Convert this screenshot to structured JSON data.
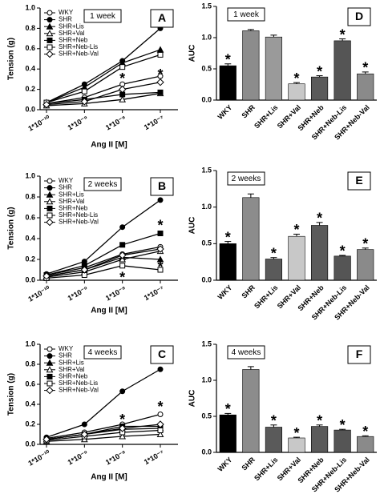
{
  "chart_data": [
    {
      "type": "line",
      "label": "A",
      "subtitle": "1 week",
      "y_label": "Tension (g)",
      "x_label": "Ang II [M]",
      "categories": [
        "1*10⁻¹⁰",
        "1*10⁻⁹",
        "1*10⁻⁸",
        "1*10⁻⁷"
      ],
      "ylim": [
        0,
        1.0
      ],
      "yticks": [
        {
          "value": 0,
          "label": "0.0"
        },
        0.2,
        0.4,
        0.6,
        0.8,
        {
          "value": 1,
          "label": "1.0"
        }
      ],
      "series": [
        {
          "name": "WKY",
          "color": "#000000",
          "marker": "circle-open",
          "values": [
            0.06,
            0.12,
            0.25,
            0.33
          ]
        },
        {
          "name": "SHR",
          "color": "#000000",
          "marker": "circle-filled",
          "values": [
            0.07,
            0.25,
            0.48,
            0.8
          ]
        },
        {
          "name": "SHR+Lis",
          "color": "#000000",
          "marker": "triangle-filled",
          "values": [
            0.07,
            0.22,
            0.46,
            0.59
          ]
        },
        {
          "name": "SHR+Val",
          "color": "#000000",
          "marker": "triangle-open",
          "values": [
            0.04,
            0.06,
            0.1,
            0.16
          ]
        },
        {
          "name": "SHR+Neb",
          "color": "#000000",
          "marker": "square-filled",
          "values": [
            0.06,
            0.1,
            0.15,
            0.17
          ]
        },
        {
          "name": "SHR+Neb-Lis",
          "color": "#000000",
          "marker": "square-open",
          "values": [
            0.07,
            0.18,
            0.42,
            0.54
          ]
        },
        {
          "name": "SHR+Neb-Val",
          "color": "#000000",
          "marker": "diamond-open",
          "values": [
            0.05,
            0.08,
            0.2,
            0.27
          ]
        }
      ],
      "annotations": [
        {
          "text": "*",
          "x": 2,
          "y": 0.33
        },
        {
          "text": "*",
          "x": 3,
          "y": 0.37
        }
      ]
    },
    {
      "type": "line",
      "label": "B",
      "subtitle": "2 weeks",
      "y_label": "Tension (g)",
      "x_label": "Ang II [M]",
      "categories": [
        "1*10⁻¹⁰",
        "1*10⁻⁹",
        "1*10⁻⁸",
        "1*10⁻⁷"
      ],
      "ylim": [
        0,
        1.0
      ],
      "yticks": [
        {
          "value": 0,
          "label": "0.0"
        },
        0.2,
        0.4,
        0.6,
        0.8,
        {
          "value": 1,
          "label": "1.0"
        }
      ],
      "series": [
        {
          "name": "WKY",
          "color": "#000000",
          "marker": "circle-open",
          "values": [
            0.05,
            0.12,
            0.25,
            0.32
          ]
        },
        {
          "name": "SHR",
          "color": "#000000",
          "marker": "circle-filled",
          "values": [
            0.06,
            0.18,
            0.51,
            0.77
          ]
        },
        {
          "name": "SHR+Lis",
          "color": "#000000",
          "marker": "triangle-filled",
          "values": [
            0.04,
            0.1,
            0.22,
            0.2
          ]
        },
        {
          "name": "SHR+Val",
          "color": "#000000",
          "marker": "triangle-open",
          "values": [
            0.03,
            0.08,
            0.2,
            0.28
          ]
        },
        {
          "name": "SHR+Neb",
          "color": "#000000",
          "marker": "square-filled",
          "values": [
            0.05,
            0.14,
            0.34,
            0.45
          ]
        },
        {
          "name": "SHR+Neb-Lis",
          "color": "#000000",
          "marker": "square-open",
          "values": [
            0.02,
            0.05,
            0.14,
            0.1
          ]
        },
        {
          "name": "SHR+Neb-Val",
          "color": "#000000",
          "marker": "diamond-open",
          "values": [
            0.04,
            0.1,
            0.24,
            0.3
          ]
        }
      ],
      "annotations": [
        {
          "text": "*",
          "x": 2,
          "y": 0.05
        },
        {
          "text": "*",
          "x": 3,
          "y": 0.55
        },
        {
          "text": "*",
          "x": 3,
          "y": 0.15
        }
      ]
    },
    {
      "type": "line",
      "label": "C",
      "subtitle": "4 weeks",
      "y_label": "Tension (g)",
      "x_label": "Ang II [M]",
      "categories": [
        "1*10⁻¹⁰",
        "1*10⁻⁹",
        "1*10⁻⁸",
        "1*10⁻⁷"
      ],
      "ylim": [
        0,
        1.0
      ],
      "yticks": [
        {
          "value": 0,
          "label": "0.0"
        },
        0.2,
        0.4,
        0.6,
        0.8,
        {
          "value": 1,
          "label": "1.0"
        }
      ],
      "series": [
        {
          "name": "WKY",
          "color": "#000000",
          "marker": "circle-open",
          "values": [
            0.06,
            0.12,
            0.2,
            0.3
          ]
        },
        {
          "name": "SHR",
          "color": "#000000",
          "marker": "circle-filled",
          "values": [
            0.07,
            0.2,
            0.53,
            0.75
          ]
        },
        {
          "name": "SHR+Lis",
          "color": "#000000",
          "marker": "triangle-filled",
          "values": [
            0.05,
            0.1,
            0.15,
            0.16
          ]
        },
        {
          "name": "SHR+Val",
          "color": "#000000",
          "marker": "triangle-open",
          "values": [
            0.03,
            0.05,
            0.08,
            0.1
          ]
        },
        {
          "name": "SHR+Neb",
          "color": "#000000",
          "marker": "square-filled",
          "values": [
            0.05,
            0.1,
            0.18,
            0.18
          ]
        },
        {
          "name": "SHR+Neb-Lis",
          "color": "#000000",
          "marker": "square-open",
          "values": [
            0.04,
            0.08,
            0.12,
            0.14
          ]
        },
        {
          "name": "SHR+Neb-Val",
          "color": "#000000",
          "marker": "diamond-open",
          "values": [
            0.05,
            0.1,
            0.16,
            0.2
          ]
        }
      ],
      "annotations": [
        {
          "text": "*",
          "x": 2,
          "y": 0.27
        },
        {
          "text": "*",
          "x": 3,
          "y": 0.4
        }
      ]
    },
    {
      "type": "bar",
      "label": "D",
      "subtitle": "1 week",
      "y_label": "AUC",
      "categories": [
        "WKY",
        "SHR",
        "SHR+Lis",
        "SHR+Val",
        "SHR+Neb",
        "SHR+Neb-Lis",
        "SHR+Neb-Val"
      ],
      "values": [
        0.55,
        1.11,
        1.01,
        0.26,
        0.37,
        0.95,
        0.42
      ],
      "errors": [
        0.03,
        0.02,
        0.03,
        0.02,
        0.02,
        0.03,
        0.03
      ],
      "colors": [
        "#000000",
        "#8c8c8c",
        "#9a9a9a",
        "#c8c8c8",
        "#5a5a5a",
        "#555555",
        "#8a8a8a"
      ],
      "ylim": [
        0,
        1.5
      ],
      "yticks": [
        {
          "value": 0,
          "label": "0.0"
        },
        0.5,
        {
          "value": 1,
          "label": "1.0"
        },
        1.5
      ],
      "annotations": [
        {
          "text": "*",
          "x": 0
        },
        {
          "text": "*",
          "x": 3
        },
        {
          "text": "*",
          "x": 4
        },
        {
          "text": "*",
          "x": 5
        },
        {
          "text": "*",
          "x": 6
        }
      ]
    },
    {
      "type": "bar",
      "label": "E",
      "subtitle": "2 weeks",
      "y_label": "AUC",
      "categories": [
        "WKY",
        "SHR",
        "SHR+Lis",
        "SHR+Val",
        "SHR+Neb",
        "SHR+Neb-Lis",
        "SHR+Neb-Val"
      ],
      "values": [
        0.5,
        1.13,
        0.29,
        0.6,
        0.75,
        0.33,
        0.42
      ],
      "errors": [
        0.03,
        0.05,
        0.02,
        0.03,
        0.04,
        0.01,
        0.02
      ],
      "colors": [
        "#000000",
        "#8c8c8c",
        "#5a5a5a",
        "#c8c8c8",
        "#5a5a5a",
        "#555555",
        "#8a8a8a"
      ],
      "ylim": [
        0,
        1.5
      ],
      "yticks": [
        {
          "value": 0,
          "label": "0.0"
        },
        0.5,
        {
          "value": 1,
          "label": "1.0"
        },
        1.5
      ],
      "annotations": [
        {
          "text": "*",
          "x": 0
        },
        {
          "text": "*",
          "x": 2
        },
        {
          "text": "*",
          "x": 3
        },
        {
          "text": "*",
          "x": 4
        },
        {
          "text": "*",
          "x": 5
        },
        {
          "text": "*",
          "x": 6
        }
      ]
    },
    {
      "type": "bar",
      "label": "F",
      "subtitle": "4 weeks",
      "y_label": "AUC",
      "categories": [
        "WKY",
        "SHR",
        "SHR+Lis",
        "SHR+Val",
        "SHR+Neb",
        "SHR+Neb-Lis",
        "SHR+Neb-Val"
      ],
      "values": [
        0.52,
        1.15,
        0.35,
        0.2,
        0.36,
        0.31,
        0.22
      ],
      "errors": [
        0.02,
        0.04,
        0.03,
        0.01,
        0.02,
        0.01,
        0.01
      ],
      "colors": [
        "#000000",
        "#8c8c8c",
        "#5a5a5a",
        "#c8c8c8",
        "#5a5a5a",
        "#555555",
        "#8a8a8a"
      ],
      "ylim": [
        0,
        1.5
      ],
      "yticks": [
        {
          "value": 0,
          "label": "0.0"
        },
        0.5,
        {
          "value": 1,
          "label": "1.0"
        },
        1.5
      ],
      "annotations": [
        {
          "text": "*",
          "x": 0
        },
        {
          "text": "*",
          "x": 2
        },
        {
          "text": "*",
          "x": 3
        },
        {
          "text": "*",
          "x": 4
        },
        {
          "text": "*",
          "x": 5
        },
        {
          "text": "*",
          "x": 6
        }
      ]
    }
  ]
}
